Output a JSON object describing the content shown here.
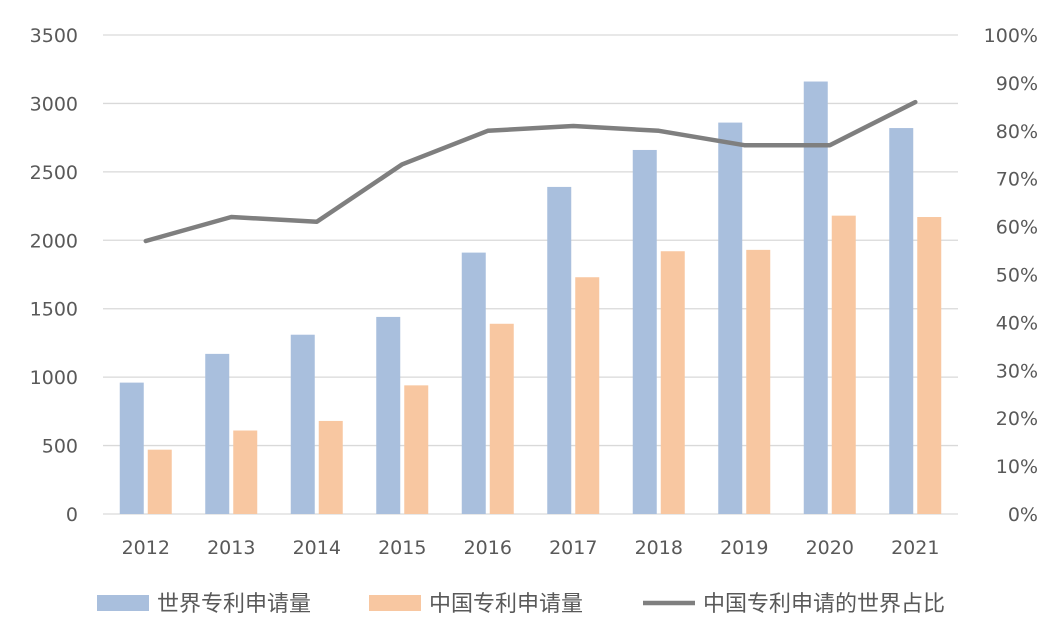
{
  "chart_data": {
    "type": "bar",
    "categories": [
      "2012",
      "2013",
      "2014",
      "2015",
      "2016",
      "2017",
      "2018",
      "2019",
      "2020",
      "2021"
    ],
    "series": [
      {
        "name": "世界专利申请量",
        "type": "bar",
        "axis": "left",
        "color": "#a9bfdd",
        "values": [
          960,
          1170,
          1310,
          1440,
          1910,
          2390,
          2660,
          2860,
          3160,
          2820
        ]
      },
      {
        "name": "中国专利申请量",
        "type": "bar",
        "axis": "right-independent",
        "color": "#f8c7a1",
        "values": [
          470,
          610,
          680,
          940,
          1390,
          1730,
          1920,
          1930,
          2180,
          2170
        ]
      },
      {
        "name": "中国专利申请的世界占比",
        "type": "line",
        "axis": "right",
        "color": "#7f7f7f",
        "values": [
          0.57,
          0.62,
          0.61,
          0.73,
          0.8,
          0.81,
          0.8,
          0.77,
          0.77,
          0.86
        ]
      }
    ],
    "y_left": {
      "min": 0,
      "max": 3500,
      "step": 500,
      "tick_labels": [
        "0",
        "500",
        "1000",
        "1500",
        "2000",
        "2500",
        "3000",
        "3500"
      ]
    },
    "y_right": {
      "min": 0,
      "max": 1,
      "step": 0.1,
      "tick_labels": [
        "0%",
        "10%",
        "20%",
        "30%",
        "40%",
        "50%",
        "60%",
        "70%",
        "80%",
        "90%",
        "100%"
      ]
    },
    "title": "",
    "xlabel": "",
    "ylabel": "",
    "grid": true,
    "legend_position": "bottom"
  }
}
